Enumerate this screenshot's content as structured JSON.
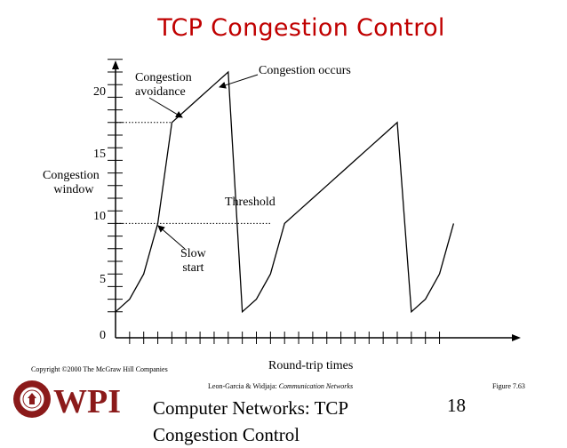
{
  "title": "TCP Congestion Control",
  "labels": {
    "congestion_avoidance": [
      "Congestion",
      "avoidance"
    ],
    "congestion_occurs": "Congestion occurs",
    "threshold": "Threshold",
    "slow_start": [
      "Slow",
      "start"
    ],
    "ylabel": [
      "Congestion",
      "window"
    ],
    "xlabel": "Round-trip times"
  },
  "footer": {
    "copyright": "Copyright ©2000 The McGraw Hill Companies",
    "credit_authors": "Leon-Garcia & Widjaja:",
    "credit_book": "Communication Networks",
    "figure": "Figure 7.63",
    "slide_title": [
      "Computer Networks: TCP",
      "Congestion Control"
    ],
    "page_number": "18",
    "logo_text": "WPI"
  },
  "colors": {
    "title": "#c00000",
    "logo": "#8b1a1a"
  },
  "chart_data": {
    "type": "line",
    "title": "",
    "xlabel": "Round-trip times",
    "ylabel": "Congestion window",
    "yticks": [
      0,
      5,
      10,
      15,
      20
    ],
    "ylim": [
      0,
      22
    ],
    "xlim": [
      0,
      23
    ],
    "thresholds": [
      {
        "y": 16,
        "x_end": 4
      },
      {
        "y": 8,
        "x_end": 11
      }
    ],
    "series": [
      {
        "points": [
          [
            0,
            1
          ],
          [
            1,
            2
          ],
          [
            2,
            4
          ],
          [
            3,
            8
          ],
          [
            4,
            16
          ],
          [
            5,
            17
          ],
          [
            6,
            18
          ],
          [
            7,
            19
          ],
          [
            8,
            20
          ],
          [
            9,
            1
          ],
          [
            10,
            2
          ],
          [
            11,
            4
          ],
          [
            12,
            8
          ],
          [
            13,
            9
          ],
          [
            14,
            10
          ],
          [
            15,
            11
          ],
          [
            16,
            12
          ],
          [
            17,
            13
          ],
          [
            18,
            14
          ],
          [
            19,
            15
          ],
          [
            20,
            16
          ],
          [
            21,
            1
          ],
          [
            22,
            2
          ],
          [
            23,
            4
          ]
        ]
      },
      {
        "points": [
          [
            23,
            4
          ],
          [
            24,
            8
          ]
        ]
      }
    ]
  }
}
